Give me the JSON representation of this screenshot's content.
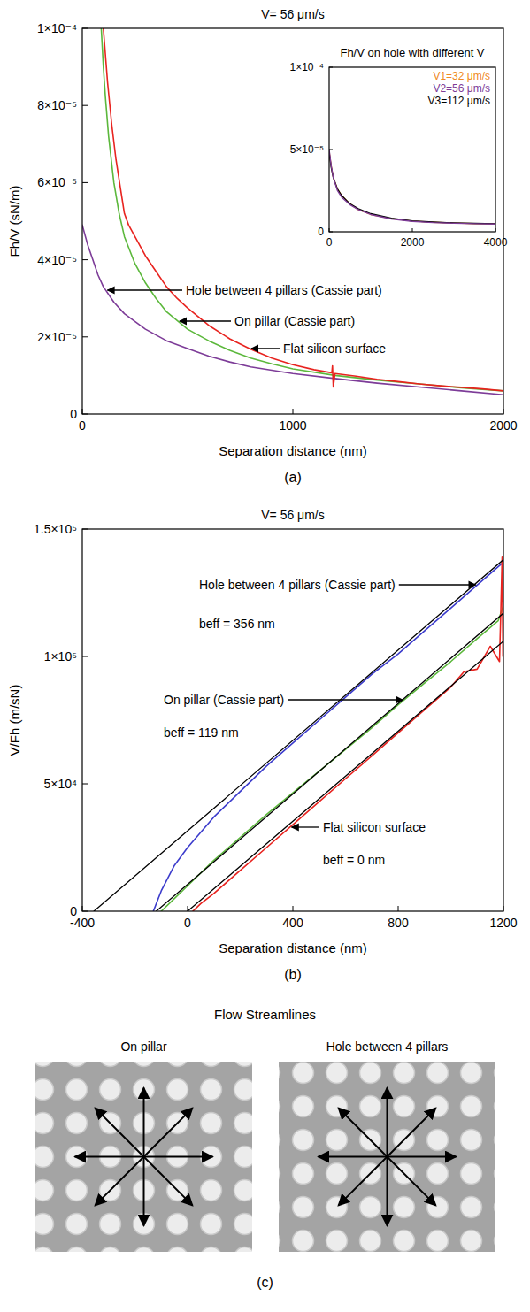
{
  "chart_data": [
    {
      "type": "line",
      "title": "V= 56 μm/s",
      "panel_label": "(a)",
      "x_label": "Separation distance (nm)",
      "y_label": "Fh/V (sN/m)",
      "xlim": [
        0,
        2000
      ],
      "xticks": [
        0,
        1000,
        2000
      ],
      "ylim": [
        0,
        0.0001
      ],
      "yticks": [
        0,
        {
          "value": 2e-05,
          "label": "2×10⁻⁵"
        },
        {
          "value": 4e-05,
          "label": "4×10⁻⁵"
        },
        {
          "value": 6e-05,
          "label": "6×10⁻⁵"
        },
        {
          "value": 8e-05,
          "label": "8×10⁻⁵"
        },
        {
          "value": 0.0001,
          "label": "1×10⁻⁴"
        }
      ],
      "series": [
        {
          "name": "Hole between 4 pillars (Cassie part)",
          "color": "#7d3c98",
          "x": [
            0,
            25,
            50,
            75,
            100,
            150,
            200,
            250,
            300,
            400,
            500,
            600,
            700,
            800,
            1000,
            1200,
            1400,
            1600,
            1800,
            2000
          ],
          "values": [
            4.9e-05,
            4.4e-05,
            4e-05,
            3.6e-05,
            3.3e-05,
            2.9e-05,
            2.6e-05,
            2.4e-05,
            2.2e-05,
            1.9e-05,
            1.7e-05,
            1.5e-05,
            1.35e-05,
            1.22e-05,
            1.05e-05,
            9.2e-06,
            8e-06,
            7e-06,
            6e-06,
            5e-06
          ]
        },
        {
          "name": "On pillar (Cassie part)",
          "color": "#5cb83c",
          "x": [
            90,
            100,
            110,
            125,
            150,
            175,
            200,
            250,
            300,
            350,
            400,
            500,
            600,
            700,
            800,
            900,
            1000,
            1200,
            1400,
            1600,
            1800,
            2000
          ],
          "values": [
            0.0001,
            9e-05,
            8.2e-05,
            7.2e-05,
            6e-05,
            5.2e-05,
            4.6e-05,
            3.9e-05,
            3.4e-05,
            3e-05,
            2.65e-05,
            2.2e-05,
            1.9e-05,
            1.65e-05,
            1.45e-05,
            1.3e-05,
            1.17e-05,
            1e-05,
            8.8e-06,
            7.8e-06,
            6.8e-06,
            6e-06
          ]
        },
        {
          "name": "Flat silicon surface",
          "color": "#e8231f",
          "x": [
            100,
            110,
            120,
            140,
            160,
            180,
            200,
            220,
            250,
            300,
            350,
            400,
            450,
            500,
            600,
            700,
            800,
            900,
            1000,
            1100,
            1185,
            1188,
            1192,
            1200,
            1300,
            1400,
            1500,
            1600,
            1700,
            1800,
            1900,
            2000
          ],
          "values": [
            0.0001,
            9.3e-05,
            8.6e-05,
            7.5e-05,
            6.6e-05,
            5.9e-05,
            5.2e-05,
            4.9e-05,
            4.6e-05,
            4.1e-05,
            3.7e-05,
            3.3e-05,
            3e-05,
            2.75e-05,
            2.3e-05,
            1.95e-05,
            1.68e-05,
            1.45e-05,
            1.28e-05,
            1.15e-05,
            1.07e-05,
            1.25e-05,
            7e-06,
            1.05e-05,
            9.8e-06,
            9e-06,
            8.4e-06,
            7.8e-06,
            7.3e-06,
            6.9e-06,
            6.5e-06,
            6e-06
          ]
        }
      ]
    },
    {
      "type": "line",
      "title": "Fh/V on hole with different V",
      "legend": "top right",
      "xlim": [
        0,
        4000
      ],
      "xticks": [
        0,
        2000,
        4000
      ],
      "ylim": [
        0,
        0.0001
      ],
      "yticks": [
        0,
        {
          "value": 5e-05,
          "label": "5×10⁻⁵"
        },
        {
          "value": 0.0001,
          "label": "1×10⁻⁴"
        }
      ],
      "series": [
        {
          "name": "V1=32 μm/s",
          "color": "#f08a24",
          "x": [
            0,
            50,
            100,
            200,
            300,
            500,
            700,
            1000,
            1500,
            2000,
            2500,
            3000,
            3500,
            4000
          ],
          "values": [
            4.9e-05,
            4e-05,
            3.3e-05,
            2.6e-05,
            2.2e-05,
            1.7e-05,
            1.35e-05,
            1.05e-05,
            8e-06,
            6.5e-06,
            5.8e-06,
            5.3e-06,
            5e-06,
            4.8e-06
          ]
        },
        {
          "name": "V2=56 μm/s",
          "color": "#7d3c98",
          "x": [
            0,
            50,
            100,
            200,
            300,
            500,
            700,
            1000,
            1500,
            2000,
            2500,
            3000,
            3500,
            4000
          ],
          "values": [
            5e-05,
            4e-05,
            3.3e-05,
            2.5e-05,
            2.1e-05,
            1.65e-05,
            1.35e-05,
            1.05e-05,
            7.8e-06,
            6.3e-06,
            5.6e-06,
            5.2e-06,
            4.9e-06,
            4.7e-06
          ]
        },
        {
          "name": "V3=112 μm/s",
          "color": "#000000",
          "x": [
            0,
            50,
            100,
            200,
            300,
            500,
            700,
            1000,
            1500,
            2000,
            2500,
            3000,
            3500,
            4000
          ],
          "values": [
            4.8e-05,
            3.9e-05,
            3.3e-05,
            2.6e-05,
            2.2e-05,
            1.7e-05,
            1.4e-05,
            1.1e-05,
            8.2e-06,
            6.6e-06,
            5.9e-06,
            5.4e-06,
            5.1e-06,
            4.9e-06
          ]
        }
      ]
    },
    {
      "type": "line",
      "title": "V= 56 μm/s",
      "panel_label": "(b)",
      "x_label": "Separation distance (nm)",
      "y_label": "V/Fh (m/sN)",
      "xlim": [
        -400,
        1200
      ],
      "xticks": [
        -400,
        0,
        400,
        800,
        1200
      ],
      "ylim": [
        0,
        150000
      ],
      "yticks": [
        0,
        {
          "value": 50000,
          "label": "5×10⁴"
        },
        {
          "value": 100000,
          "label": "1×10⁵"
        },
        {
          "value": 150000,
          "label": "1.5×10⁵"
        }
      ],
      "annotations": [
        "beff = 356 nm",
        "beff = 119 nm",
        "beff = 0 nm"
      ],
      "series": [
        {
          "name": "Hole between 4 pillars (Cassie part)",
          "color": "#3c3ccc",
          "x": [
            -130,
            -100,
            -50,
            0,
            50,
            100,
            200,
            300,
            400,
            500,
            600,
            700,
            800,
            900,
            1000,
            1100,
            1200
          ],
          "values": [
            0,
            8000,
            18000,
            25000,
            31000,
            37000,
            47000,
            57000,
            66000,
            75000,
            84000,
            93000,
            101000,
            110000,
            119000,
            128000,
            137000
          ]
        },
        {
          "name": "On pillar (Cassie part)",
          "color": "#5cb83c",
          "x": [
            -100,
            -50,
            0,
            100,
            200,
            300,
            400,
            500,
            600,
            700,
            800,
            900,
            1000,
            1100,
            1180,
            1200
          ],
          "values": [
            0,
            5000,
            10000,
            20000,
            29000,
            38000,
            46500,
            55000,
            63500,
            72000,
            81000,
            89500,
            98000,
            107000,
            114000,
            120000
          ]
        },
        {
          "name": "Flat silicon surface",
          "color": "#e8231f",
          "x": [
            20,
            50,
            100,
            200,
            300,
            400,
            500,
            600,
            700,
            800,
            900,
            1000,
            1050,
            1100,
            1150,
            1185,
            1190,
            1195,
            1198,
            1200
          ],
          "values": [
            0,
            3000,
            7000,
            16000,
            25000,
            34000,
            43000,
            52000,
            61000,
            70000,
            79000,
            88000,
            94000,
            95000,
            104000,
            98000,
            118000,
            139000,
            100000,
            106000
          ]
        },
        {
          "color": "#000000",
          "line_style": "solid",
          "x": [
            -356,
            1200
          ],
          "values": [
            0,
            138000
          ]
        },
        {
          "color": "#000000",
          "line_style": "solid",
          "x": [
            -119,
            1200
          ],
          "values": [
            0,
            117000
          ]
        },
        {
          "color": "#000000",
          "line_style": "solid",
          "x": [
            0,
            1200
          ],
          "values": [
            0,
            106000
          ]
        }
      ]
    }
  ],
  "figure": {
    "panel_c": {
      "title": "Flow Streamlines",
      "panel_label": "(c)",
      "images": [
        {
          "label": "On pillar"
        },
        {
          "label": "Hole between 4 pillars"
        }
      ]
    }
  }
}
